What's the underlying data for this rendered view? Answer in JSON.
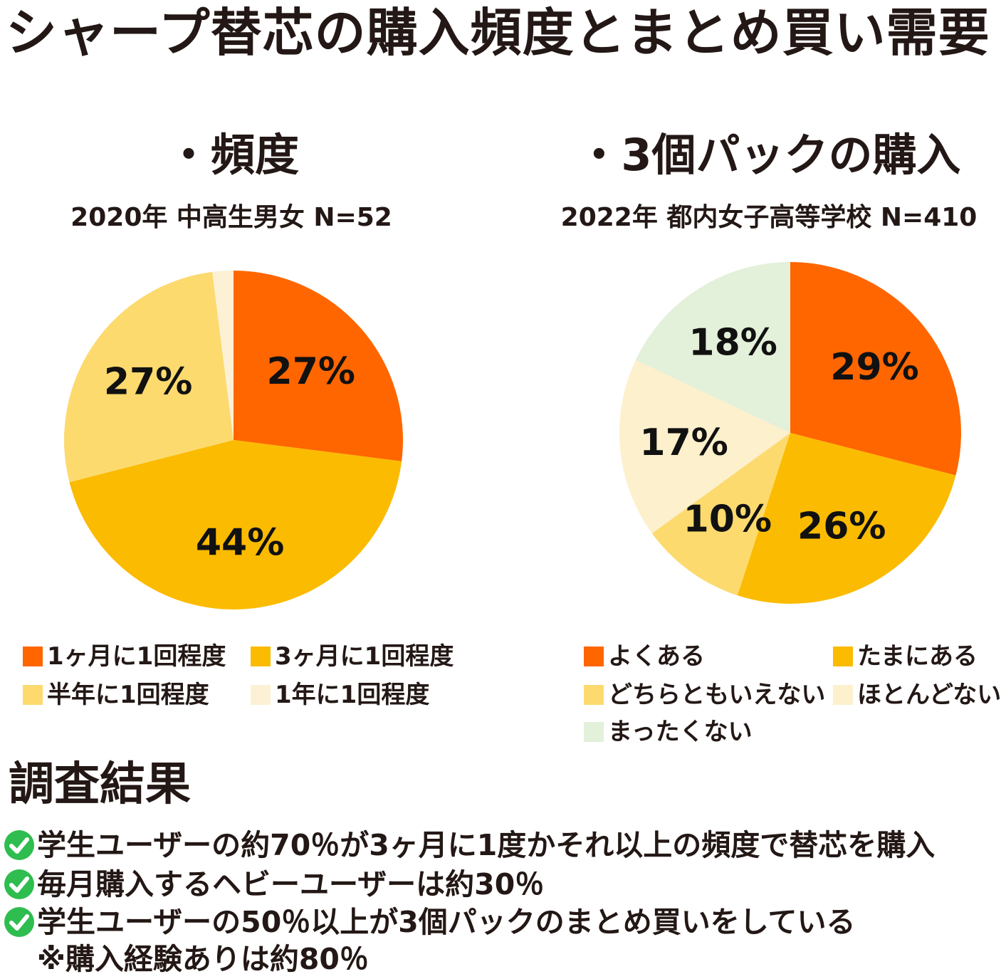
{
  "title": "シャープ替芯の購入頻度とまとめ買い需要",
  "chart_data": [
    {
      "type": "pie",
      "title": "・頻度",
      "subtitle": "2020年 中高生男女 N=52",
      "categories": [
        "1ヶ月に1回程度",
        "3ヶ月に1回程度",
        "半年に1回程度",
        "1年に1回程度"
      ],
      "values": [
        27,
        44,
        27,
        2
      ],
      "labels": [
        "27%",
        "44%",
        "27%",
        ""
      ],
      "colors": [
        "#ff6600",
        "#fbbb00",
        "#fcda6e",
        "#fdf1d5"
      ],
      "legend": "bottom"
    },
    {
      "type": "pie",
      "title": "・3個パックの購入",
      "subtitle": "2022年 都内女子高等学校 N=410",
      "categories": [
        "よくある",
        "たまにある",
        "どちらともいえない",
        "ほとんどない",
        "まったくない"
      ],
      "values": [
        29,
        26,
        10,
        17,
        18
      ],
      "labels": [
        "29%",
        "26%",
        "10%",
        "17%",
        "18%"
      ],
      "colors": [
        "#ff6600",
        "#fbbb00",
        "#fcda6e",
        "#fdf0cc",
        "#e3f0da"
      ],
      "legend": "bottom"
    }
  ],
  "results": {
    "heading": "調査結果",
    "items": [
      "学生ユーザーの約70％が3ヶ月に1度かそれ以上の頻度で替芯を購入",
      "毎月購入するヘビーユーザーは約30％",
      "学生ユーザーの50％以上が3個パックのまとめ買いをしている"
    ],
    "note": "※購入経験ありは約80％",
    "icon": "check-circle-icon",
    "icon_color": "#2ebd4e"
  }
}
